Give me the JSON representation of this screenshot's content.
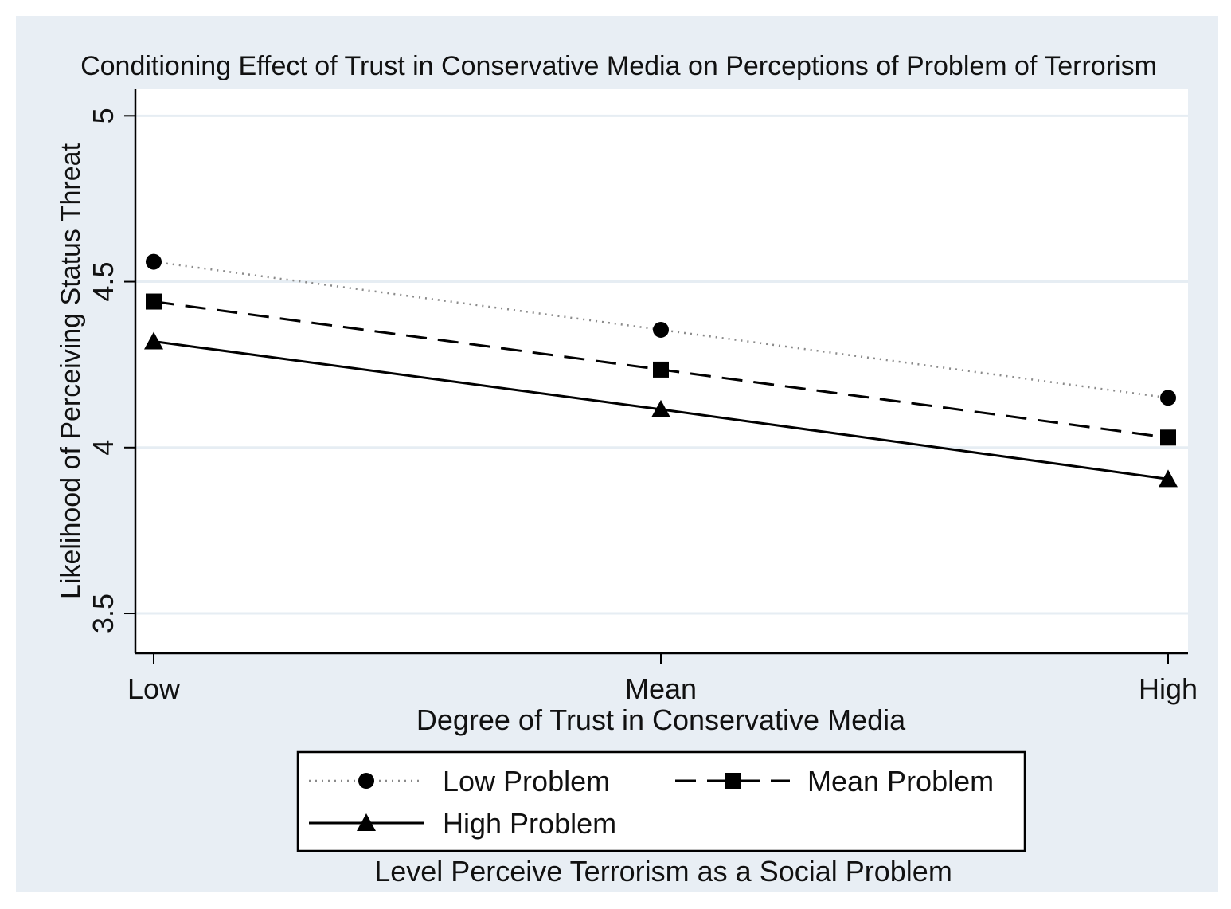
{
  "chart_data": {
    "type": "line",
    "title": "Conditioning Effect of Trust in Conservative Media on Perceptions of Problem of Terrorism",
    "xlabel": "Degree of Trust in Conservative Media",
    "ylabel": "Likelihood of Perceiving Status Threat",
    "categories": [
      "Low",
      "Mean",
      "High"
    ],
    "ylim": [
      3.38,
      5.08
    ],
    "yticks": [
      3.5,
      4,
      4.5,
      5
    ],
    "ytick_labels": [
      "3.5",
      "4",
      "4.5",
      "5"
    ],
    "grid": true,
    "legend": {
      "title": "Level Perceive Terrorism as a Social Problem",
      "placement": "bottom",
      "columns": 2
    },
    "series": [
      {
        "name": "Low Problem",
        "values": [
          4.56,
          4.355,
          4.15
        ],
        "line_style": "dotted",
        "marker": "circle",
        "color": "#8a8a8a",
        "marker_color": "#000000"
      },
      {
        "name": "Mean Problem",
        "values": [
          4.44,
          4.235,
          4.03
        ],
        "line_style": "dashed",
        "marker": "square",
        "color": "#000000",
        "marker_color": "#000000"
      },
      {
        "name": "High Problem",
        "values": [
          4.32,
          4.115,
          3.905
        ],
        "line_style": "solid",
        "marker": "triangle",
        "color": "#000000",
        "marker_color": "#000000"
      }
    ],
    "colors": {
      "outer_background": "#e8eef4",
      "plot_background": "#ffffff",
      "gridline": "#e6edf3",
      "axis": "#000000"
    }
  }
}
